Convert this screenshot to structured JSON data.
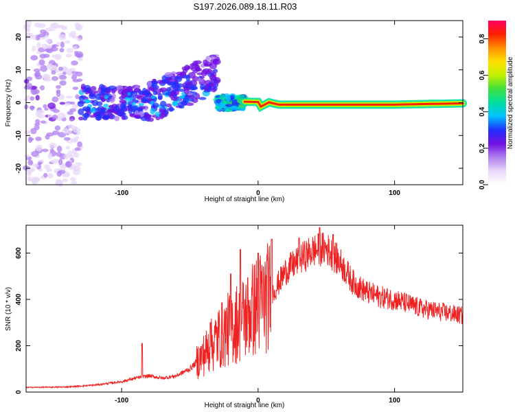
{
  "title": "S197.2026.089.18.11.R03",
  "chart_data": [
    {
      "type": "heatmap",
      "name": "spectrogram",
      "xlabel": "Height of straight line (km)",
      "ylabel": "Frequency (Hz)",
      "xlim": [
        -170,
        150
      ],
      "ylim": [
        -25,
        25
      ],
      "xticks": [
        -100,
        0,
        100
      ],
      "yticks": [
        -20,
        -10,
        0,
        10,
        20
      ],
      "colorbar": {
        "label": "Normalized spectral amplitude",
        "range": [
          0,
          0.9
        ],
        "ticks": [
          "0.0",
          "0.2",
          "0.4",
          "0.6",
          "0.8"
        ],
        "colors": [
          "#ffffff",
          "#e8d8f8",
          "#b080f0",
          "#7010e0",
          "#2030ff",
          "#00c0ff",
          "#00e0a0",
          "#40e040",
          "#c0f000",
          "#ffe000",
          "#ff9000",
          "#ff2000",
          "#ff0060"
        ]
      },
      "ridge": {
        "description": "narrow band near 0 Hz",
        "points": [
          [
            -10,
            0.3
          ],
          [
            0,
            0.2
          ],
          [
            2,
            -1.2
          ],
          [
            8,
            0.1
          ],
          [
            15,
            -0.6
          ],
          [
            50,
            -0.6
          ],
          [
            100,
            -0.6
          ],
          [
            150,
            -0.2
          ]
        ]
      },
      "scatter_clusters": [
        {
          "x_range": [
            -170,
            -130
          ],
          "y_spread": 25,
          "level": "low"
        },
        {
          "x_range": [
            -130,
            -80
          ],
          "y_spread": 5,
          "level": "medium"
        },
        {
          "x_range": [
            -80,
            -30
          ],
          "y_spread": 10,
          "level": "medium"
        },
        {
          "x_range": [
            -30,
            -10
          ],
          "y_spread": 2,
          "level": "high"
        }
      ]
    },
    {
      "type": "line",
      "name": "snr",
      "xlabel": "Height of straight line (km)",
      "ylabel": "SNR (10 * v/v)",
      "xlim": [
        -170,
        150
      ],
      "ylim": [
        0,
        720
      ],
      "xticks": [
        -100,
        0,
        100
      ],
      "yticks": [
        0,
        200,
        400,
        600
      ],
      "color": "#ee2222",
      "series": [
        {
          "name": "SNR",
          "envelope_x": [
            -170,
            -140,
            -120,
            -100,
            -90,
            -80,
            -70,
            -60,
            -50,
            -40,
            -30,
            -20,
            -10,
            0,
            10,
            20,
            30,
            40,
            50,
            60,
            70,
            80,
            90,
            100,
            110,
            120,
            130,
            140,
            150
          ],
          "envelope_y": [
            20,
            22,
            30,
            45,
            60,
            70,
            60,
            70,
            100,
            160,
            230,
            280,
            320,
            380,
            420,
            520,
            570,
            610,
            620,
            560,
            470,
            430,
            410,
            400,
            380,
            360,
            350,
            340,
            330
          ],
          "peaks": [
            [
              -85,
              210
            ],
            [
              -35,
              300
            ],
            [
              -20,
              510
            ],
            [
              -13,
              615
            ],
            [
              0,
              600
            ],
            [
              10,
              660
            ],
            [
              30,
              665
            ],
            [
              45,
              710
            ],
            [
              55,
              680
            ]
          ]
        }
      ]
    }
  ]
}
